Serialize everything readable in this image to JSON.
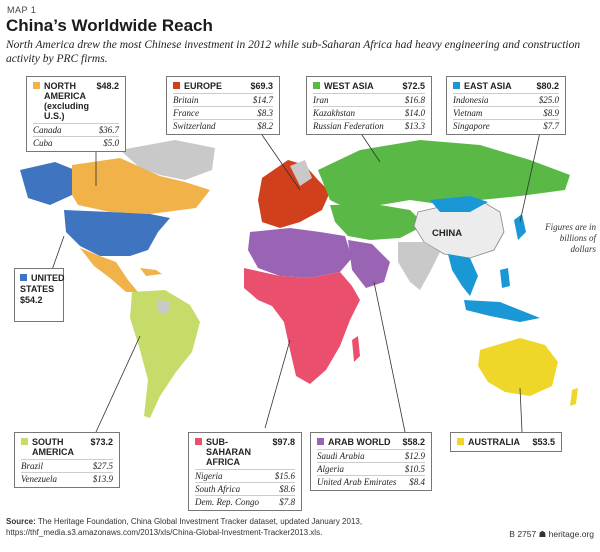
{
  "header": {
    "map_label": "MAP 1",
    "title": "China’s Worldwide Reach",
    "subtitle": "North America drew the most Chinese investment in 2012 while sub-Saharan Africa had heavy engineering and construction activity by PRC firms."
  },
  "china_label": "CHINA",
  "figures_note": "Figures are in billions of dollars",
  "colors": {
    "north_america": "#f2b24a",
    "united_states": "#3f74c0",
    "europe": "#d1401d",
    "west_asia": "#5ab946",
    "east_asia": "#1a98d6",
    "south_america": "#c6dc6a",
    "sub_saharan_africa": "#ea4f6e",
    "arab_world": "#9a64b5",
    "australia": "#efd72a",
    "other": "#c9c9c9"
  },
  "regions": {
    "north_america": {
      "name": "NORTH AMERICA (excluding U.S.)",
      "value": "$48.2",
      "rows": [
        {
          "label": "Canada",
          "value": "$36.7"
        },
        {
          "label": "Cuba",
          "value": "$5.0"
        }
      ]
    },
    "europe": {
      "name": "EUROPE",
      "value": "$69.3",
      "rows": [
        {
          "label": "Britain",
          "value": "$14.7"
        },
        {
          "label": "France",
          "value": "$8.3"
        },
        {
          "label": "Switzerland",
          "value": "$8.2"
        }
      ]
    },
    "west_asia": {
      "name": "WEST ASIA",
      "value": "$72.5",
      "rows": [
        {
          "label": "Iran",
          "value": "$16.8"
        },
        {
          "label": "Kazakhstan",
          "value": "$14.0"
        },
        {
          "label": "Russian Federation",
          "value": "$13.3"
        }
      ]
    },
    "east_asia": {
      "name": "EAST ASIA",
      "value": "$80.2",
      "rows": [
        {
          "label": "Indonesia",
          "value": "$25.0"
        },
        {
          "label": "Vietnam",
          "value": "$8.9"
        },
        {
          "label": "Singapore",
          "value": "$7.7"
        }
      ]
    },
    "united_states": {
      "name_line1": "UNITED",
      "name_line2": "STATES",
      "value": "$54.2"
    },
    "south_america": {
      "name": "SOUTH AMERICA",
      "value": "$73.2",
      "rows": [
        {
          "label": "Brazil",
          "value": "$27.5"
        },
        {
          "label": "Venezuela",
          "value": "$13.9"
        }
      ]
    },
    "sub_saharan_africa": {
      "name": "SUB-SAHARAN AFRICA",
      "value": "$97.8",
      "rows": [
        {
          "label": "Nigeria",
          "value": "$15.6"
        },
        {
          "label": "South Africa",
          "value": "$8.6"
        },
        {
          "label": "Dem. Rep. Congo",
          "value": "$7.8"
        }
      ]
    },
    "arab_world": {
      "name": "ARAB WORLD",
      "value": "$58.2",
      "rows": [
        {
          "label": "Saudi Arabia",
          "value": "$12.9"
        },
        {
          "label": "Algeria",
          "value": "$10.5"
        },
        {
          "label": "United Arab Emirates",
          "value": "$8.4"
        }
      ]
    },
    "australia": {
      "name": "AUSTRALIA",
      "value": "$53.5"
    }
  },
  "source": {
    "label": "Source:",
    "text": "The Heritage Foundation, China Global Investment Tracker dataset, updated January 2013, https://thf_media.s3.amazonaws.com/2013/xls/China-Global-Investment-Tracker2013.xls."
  },
  "footer": {
    "code": "B 2757",
    "site": "heritage.org"
  }
}
